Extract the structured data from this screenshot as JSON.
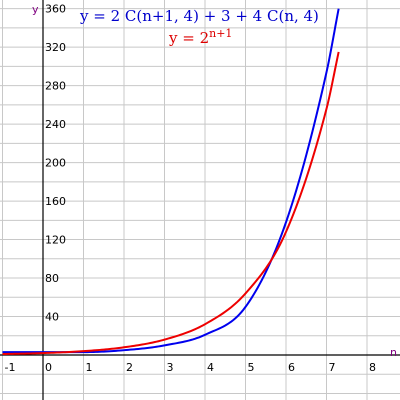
{
  "chart_data": {
    "type": "line",
    "xlabel": "n",
    "ylabel": "y",
    "xlim": [
      -1,
      9
    ],
    "ylim": [
      0,
      360
    ],
    "x_ticks": [
      "-1",
      "0",
      "1",
      "2",
      "3",
      "4",
      "5",
      "6",
      "7",
      "8"
    ],
    "y_ticks": [
      "40",
      "80",
      "120",
      "160",
      "200",
      "240",
      "280",
      "320",
      "360"
    ],
    "grid": true,
    "x": [
      -1,
      0,
      1,
      2,
      3,
      4,
      5,
      6,
      7,
      7.3
    ],
    "series": [
      {
        "name": "y = 2 C(n+1, 4) + 3 + 4 C(n, 4)",
        "color": "#0000ee",
        "values": [
          3,
          3,
          3,
          5,
          10,
          21,
          50,
          138,
          294,
          360
        ]
      },
      {
        "name": "y = 2^(n+1)",
        "color": "#ee0000",
        "values": [
          1,
          2,
          4,
          8,
          16,
          32,
          64,
          128,
          256,
          315
        ]
      }
    ]
  },
  "labels": {
    "blue_formula": "y = 2 C(n+1, 4) + 3 + 4 C(n, 4)",
    "red_formula_base": "y = 2",
    "red_formula_exponent": "n+1"
  }
}
